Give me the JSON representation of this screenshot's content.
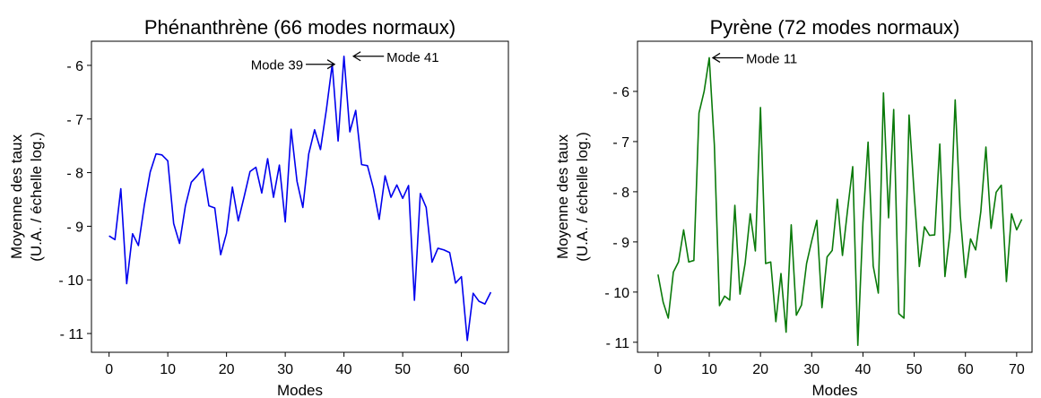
{
  "chart_data": [
    {
      "type": "line",
      "title": "Phénanthrène (66 modes normaux)",
      "xlabel": "Modes",
      "ylabel_lines": [
        "Moyenne des taux",
        "(U.A. / échelle log.)"
      ],
      "xlim": [
        -3,
        68
      ],
      "ylim": [
        -11.35,
        -5.55
      ],
      "xticks": [
        0,
        10,
        20,
        30,
        40,
        50,
        60
      ],
      "xtick_labels": [
        "0",
        "10",
        "20",
        "30",
        "40",
        "50",
        "60"
      ],
      "yticks": [
        -6,
        -7,
        -8,
        -9,
        -10,
        -11
      ],
      "ytick_labels": [
        "- 6",
        "- 7",
        "- 8",
        "- 9",
        "- 10",
        "- 11"
      ],
      "color": "#0000ee",
      "grid": false,
      "x": [
        0,
        1,
        2,
        3,
        4,
        5,
        6,
        7,
        8,
        9,
        10,
        11,
        12,
        13,
        14,
        15,
        16,
        17,
        18,
        19,
        20,
        21,
        22,
        23,
        24,
        25,
        26,
        27,
        28,
        29,
        30,
        31,
        32,
        33,
        34,
        35,
        36,
        37,
        38,
        39,
        40,
        41,
        42,
        43,
        44,
        45,
        46,
        47,
        48,
        49,
        50,
        51,
        52,
        53,
        54,
        55,
        56,
        57,
        58,
        59,
        60,
        61,
        62,
        63,
        64,
        65
      ],
      "y": [
        -9.18,
        -9.25,
        -8.3,
        -10.07,
        -9.14,
        -9.36,
        -8.61,
        -7.99,
        -7.65,
        -7.67,
        -7.78,
        -8.95,
        -9.32,
        -8.62,
        -8.18,
        -8.06,
        -7.93,
        -8.62,
        -8.66,
        -9.53,
        -9.13,
        -8.27,
        -8.9,
        -8.45,
        -7.98,
        -7.9,
        -8.38,
        -7.74,
        -8.46,
        -7.86,
        -8.92,
        -7.19,
        -8.16,
        -8.65,
        -7.65,
        -7.2,
        -7.57,
        -6.83,
        -5.98,
        -7.41,
        -5.83,
        -7.24,
        -6.84,
        -7.85,
        -7.87,
        -8.29,
        -8.87,
        -8.06,
        -8.46,
        -8.23,
        -8.48,
        -8.24,
        -10.38,
        -8.39,
        -8.65,
        -9.67,
        -9.41,
        -9.44,
        -9.49,
        -10.06,
        -9.94,
        -11.13,
        -10.25,
        -10.4,
        -10.45,
        -10.23
      ],
      "annotations": [
        {
          "text": "Mode 39",
          "x": 39,
          "y": -5.98,
          "side": "left"
        },
        {
          "text": "Mode 41",
          "x": 41,
          "y": -5.83,
          "side": "right"
        }
      ]
    },
    {
      "type": "line",
      "title": "Pyrène (72 modes normaux)",
      "xlabel": "Modes",
      "ylabel_lines": [
        "Moyenne des taux",
        "(U.A. / échelle log.)"
      ],
      "xlim": [
        -4,
        73
      ],
      "ylim": [
        -11.2,
        -5.0
      ],
      "xticks": [
        0,
        10,
        20,
        30,
        40,
        50,
        60,
        70
      ],
      "xtick_labels": [
        "0",
        "10",
        "20",
        "30",
        "40",
        "50",
        "60",
        "70"
      ],
      "yticks": [
        -6,
        -7,
        -8,
        -9,
        -10,
        -11
      ],
      "ytick_labels": [
        "- 6",
        "- 7",
        "- 8",
        "- 9",
        "- 10",
        "- 11"
      ],
      "color": "#0a7a0a",
      "grid": false,
      "x": [
        0,
        1,
        2,
        3,
        4,
        5,
        6,
        7,
        8,
        9,
        10,
        11,
        12,
        13,
        14,
        15,
        16,
        17,
        18,
        19,
        20,
        21,
        22,
        23,
        24,
        25,
        26,
        27,
        28,
        29,
        30,
        31,
        32,
        33,
        34,
        35,
        36,
        37,
        38,
        39,
        40,
        41,
        42,
        43,
        44,
        45,
        46,
        47,
        48,
        49,
        50,
        51,
        52,
        53,
        54,
        55,
        56,
        57,
        58,
        59,
        60,
        61,
        62,
        63,
        64,
        65,
        66,
        67,
        68,
        69,
        70,
        71
      ],
      "y": [
        -9.65,
        -10.2,
        -10.52,
        -9.6,
        -9.4,
        -8.76,
        -9.4,
        -9.37,
        -6.43,
        -6.0,
        -5.33,
        -7.07,
        -10.27,
        -10.08,
        -10.16,
        -8.27,
        -10.04,
        -9.43,
        -8.44,
        -9.18,
        -6.32,
        -9.43,
        -9.4,
        -10.59,
        -9.63,
        -10.8,
        -8.66,
        -10.46,
        -10.26,
        -9.43,
        -8.98,
        -8.57,
        -10.31,
        -9.3,
        -9.17,
        -8.15,
        -9.27,
        -8.36,
        -7.5,
        -11.06,
        -8.61,
        -7.01,
        -9.48,
        -10.02,
        -6.03,
        -8.52,
        -6.36,
        -10.43,
        -10.52,
        -6.47,
        -8.04,
        -9.49,
        -8.7,
        -8.87,
        -8.86,
        -7.05,
        -9.69,
        -8.8,
        -6.17,
        -8.48,
        -9.71,
        -8.94,
        -9.16,
        -8.4,
        -7.11,
        -8.73,
        -8.01,
        -7.87,
        -9.79,
        -8.44,
        -8.76,
        -8.55
      ],
      "annotations": [
        {
          "text": "Mode 11",
          "x": 10,
          "y": -5.33,
          "side": "right"
        }
      ]
    }
  ]
}
